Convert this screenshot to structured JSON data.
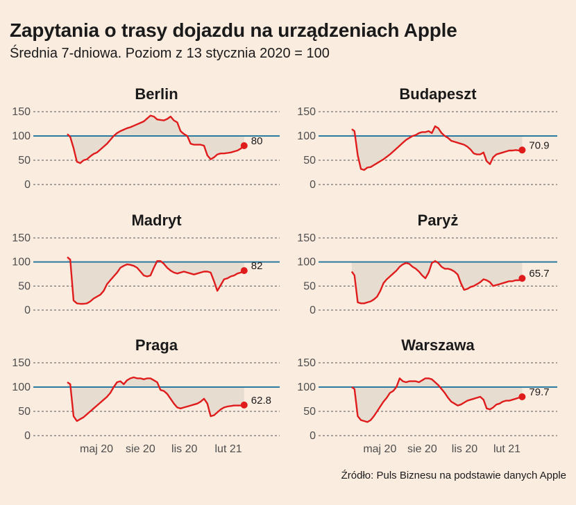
{
  "title": "Zapytania o trasy dojazdu na urządzeniach Apple",
  "subtitle": "Średnia 7-dniowa. Poziom z 13 stycznia 2020 = 100",
  "source": "Źródło: Puls Biznesu na podstawie danych Apple",
  "colors": {
    "background": "#fbece0",
    "line": "#e01b1b",
    "baseline": "#2a7aa0",
    "fill": "#e6dcd0",
    "grid": "#555555"
  },
  "chart_data": [
    {
      "type": "line",
      "title": "Berlin",
      "end_label": "80",
      "x_ticks": [
        "maj 20",
        "sie 20",
        "lis 20",
        "lut 21"
      ],
      "y_ticks": [
        0,
        50,
        100,
        150
      ],
      "ylim": [
        0,
        150
      ],
      "baseline": 100,
      "series": [
        {
          "x": [
            "2020-03-01",
            "2020-03-07",
            "2020-03-14",
            "2020-03-21",
            "2020-03-28",
            "2020-04-04",
            "2020-04-11",
            "2020-04-18",
            "2020-04-25",
            "2020-05-02",
            "2020-05-09",
            "2020-05-16",
            "2020-05-23",
            "2020-05-30",
            "2020-06-06",
            "2020-06-13",
            "2020-06-20",
            "2020-06-27",
            "2020-07-04",
            "2020-07-11",
            "2020-07-18",
            "2020-07-25",
            "2020-08-01",
            "2020-08-08",
            "2020-08-15",
            "2020-08-22",
            "2020-08-29",
            "2020-09-05",
            "2020-09-12",
            "2020-09-19",
            "2020-09-26",
            "2020-10-03",
            "2020-10-10",
            "2020-10-17",
            "2020-10-24",
            "2020-10-31",
            "2020-11-07",
            "2020-11-14",
            "2020-11-21",
            "2020-11-28",
            "2020-12-05",
            "2020-12-12",
            "2020-12-19",
            "2020-12-26",
            "2021-01-02",
            "2021-01-09",
            "2021-01-16",
            "2021-01-23",
            "2021-01-30",
            "2021-02-06",
            "2021-02-13",
            "2021-02-20",
            "2021-02-27",
            "2021-03-06"
          ],
          "y": [
            104,
            98,
            75,
            47,
            44,
            50,
            52,
            58,
            63,
            66,
            72,
            78,
            84,
            92,
            100,
            106,
            110,
            113,
            116,
            118,
            121,
            124,
            127,
            130,
            136,
            142,
            140,
            134,
            133,
            132,
            135,
            140,
            132,
            128,
            110,
            104,
            100,
            84,
            82,
            82,
            82,
            80,
            60,
            52,
            56,
            62,
            64,
            64,
            65,
            66,
            68,
            70,
            74,
            80
          ]
        }
      ]
    },
    {
      "type": "line",
      "title": "Budapeszt",
      "end_label": "70.9",
      "x_ticks": [
        "maj 20",
        "sie 20",
        "lis 20",
        "lut 21"
      ],
      "y_ticks": [
        0,
        50,
        100,
        150
      ],
      "ylim": [
        0,
        150
      ],
      "baseline": 100,
      "series": [
        {
          "x": [
            "2020-03-01",
            "2020-03-07",
            "2020-03-14",
            "2020-03-21",
            "2020-03-28",
            "2020-04-04",
            "2020-04-11",
            "2020-04-18",
            "2020-04-25",
            "2020-05-02",
            "2020-05-09",
            "2020-05-16",
            "2020-05-23",
            "2020-05-30",
            "2020-06-06",
            "2020-06-13",
            "2020-06-20",
            "2020-06-27",
            "2020-07-04",
            "2020-07-11",
            "2020-07-18",
            "2020-07-25",
            "2020-08-01",
            "2020-08-08",
            "2020-08-15",
            "2020-08-22",
            "2020-08-29",
            "2020-09-05",
            "2020-09-12",
            "2020-09-19",
            "2020-09-26",
            "2020-10-03",
            "2020-10-10",
            "2020-10-17",
            "2020-10-24",
            "2020-10-31",
            "2020-11-07",
            "2020-11-14",
            "2020-11-21",
            "2020-11-28",
            "2020-12-05",
            "2020-12-12",
            "2020-12-19",
            "2020-12-26",
            "2021-01-02",
            "2021-01-09",
            "2021-01-16",
            "2021-01-23",
            "2021-01-30",
            "2021-02-06",
            "2021-02-13",
            "2021-02-20",
            "2021-02-27",
            "2021-03-06"
          ],
          "y": [
            114,
            110,
            60,
            32,
            30,
            35,
            36,
            40,
            44,
            48,
            52,
            57,
            62,
            68,
            74,
            80,
            86,
            92,
            96,
            100,
            102,
            106,
            108,
            108,
            110,
            106,
            120,
            116,
            106,
            100,
            96,
            90,
            88,
            86,
            84,
            82,
            78,
            72,
            64,
            62,
            62,
            66,
            48,
            42,
            56,
            62,
            64,
            66,
            68,
            70,
            70,
            71,
            70,
            71
          ]
        }
      ]
    },
    {
      "type": "line",
      "title": "Madryt",
      "end_label": "82",
      "x_ticks": [
        "maj 20",
        "sie 20",
        "lis 20",
        "lut 21"
      ],
      "y_ticks": [
        0,
        50,
        100,
        150
      ],
      "ylim": [
        0,
        150
      ],
      "baseline": 100,
      "series": [
        {
          "x": [
            "2020-03-01",
            "2020-03-07",
            "2020-03-14",
            "2020-03-21",
            "2020-03-28",
            "2020-04-04",
            "2020-04-11",
            "2020-04-18",
            "2020-04-25",
            "2020-05-02",
            "2020-05-09",
            "2020-05-16",
            "2020-05-23",
            "2020-05-30",
            "2020-06-06",
            "2020-06-13",
            "2020-06-20",
            "2020-06-27",
            "2020-07-04",
            "2020-07-11",
            "2020-07-18",
            "2020-07-25",
            "2020-08-01",
            "2020-08-08",
            "2020-08-15",
            "2020-08-22",
            "2020-08-29",
            "2020-09-05",
            "2020-09-12",
            "2020-09-19",
            "2020-09-26",
            "2020-10-03",
            "2020-10-10",
            "2020-10-17",
            "2020-10-24",
            "2020-10-31",
            "2020-11-07",
            "2020-11-14",
            "2020-11-21",
            "2020-11-28",
            "2020-12-05",
            "2020-12-12",
            "2020-12-19",
            "2020-12-26",
            "2021-01-02",
            "2021-01-09",
            "2021-01-16",
            "2021-01-23",
            "2021-01-30",
            "2021-02-06",
            "2021-02-13",
            "2021-02-20",
            "2021-02-27",
            "2021-03-06"
          ],
          "y": [
            110,
            105,
            20,
            14,
            13,
            13,
            14,
            18,
            24,
            28,
            32,
            40,
            54,
            62,
            70,
            78,
            88,
            92,
            95,
            94,
            92,
            88,
            80,
            72,
            70,
            72,
            88,
            102,
            102,
            96,
            88,
            82,
            78,
            76,
            78,
            80,
            78,
            76,
            74,
            76,
            78,
            80,
            80,
            78,
            60,
            40,
            52,
            64,
            66,
            70,
            72,
            76,
            78,
            82
          ]
        }
      ]
    },
    {
      "type": "line",
      "title": "Paryż",
      "end_label": "65.7",
      "x_ticks": [
        "maj 20",
        "sie 20",
        "lis 20",
        "lut 21"
      ],
      "y_ticks": [
        0,
        50,
        100,
        150
      ],
      "ylim": [
        0,
        150
      ],
      "baseline": 100,
      "series": [
        {
          "x": [
            "2020-03-01",
            "2020-03-07",
            "2020-03-14",
            "2020-03-21",
            "2020-03-28",
            "2020-04-04",
            "2020-04-11",
            "2020-04-18",
            "2020-04-25",
            "2020-05-02",
            "2020-05-09",
            "2020-05-16",
            "2020-05-23",
            "2020-05-30",
            "2020-06-06",
            "2020-06-13",
            "2020-06-20",
            "2020-06-27",
            "2020-07-04",
            "2020-07-11",
            "2020-07-18",
            "2020-07-25",
            "2020-08-01",
            "2020-08-08",
            "2020-08-15",
            "2020-08-22",
            "2020-08-29",
            "2020-09-05",
            "2020-09-12",
            "2020-09-19",
            "2020-09-26",
            "2020-10-03",
            "2020-10-10",
            "2020-10-17",
            "2020-10-24",
            "2020-10-31",
            "2020-11-07",
            "2020-11-14",
            "2020-11-21",
            "2020-11-28",
            "2020-12-05",
            "2020-12-12",
            "2020-12-19",
            "2020-12-26",
            "2021-01-02",
            "2021-01-09",
            "2021-01-16",
            "2021-01-23",
            "2021-01-30",
            "2021-02-06",
            "2021-02-13",
            "2021-02-20",
            "2021-02-27",
            "2021-03-06"
          ],
          "y": [
            80,
            72,
            16,
            14,
            14,
            16,
            18,
            22,
            28,
            40,
            56,
            64,
            70,
            76,
            82,
            90,
            95,
            98,
            96,
            90,
            86,
            80,
            72,
            66,
            78,
            98,
            102,
            98,
            90,
            86,
            86,
            84,
            80,
            74,
            56,
            42,
            44,
            48,
            50,
            54,
            58,
            64,
            62,
            58,
            50,
            52,
            54,
            56,
            58,
            60,
            60,
            62,
            62,
            66
          ]
        }
      ]
    },
    {
      "type": "line",
      "title": "Praga",
      "end_label": "62.8",
      "x_ticks": [
        "maj 20",
        "sie 20",
        "lis 20",
        "lut 21"
      ],
      "y_ticks": [
        0,
        50,
        100,
        150
      ],
      "ylim": [
        0,
        150
      ],
      "baseline": 100,
      "series": [
        {
          "x": [
            "2020-03-01",
            "2020-03-07",
            "2020-03-14",
            "2020-03-21",
            "2020-03-28",
            "2020-04-04",
            "2020-04-11",
            "2020-04-18",
            "2020-04-25",
            "2020-05-02",
            "2020-05-09",
            "2020-05-16",
            "2020-05-23",
            "2020-05-30",
            "2020-06-06",
            "2020-06-13",
            "2020-06-20",
            "2020-06-27",
            "2020-07-04",
            "2020-07-11",
            "2020-07-18",
            "2020-07-25",
            "2020-08-01",
            "2020-08-08",
            "2020-08-15",
            "2020-08-22",
            "2020-08-29",
            "2020-09-05",
            "2020-09-12",
            "2020-09-19",
            "2020-09-26",
            "2020-10-03",
            "2020-10-10",
            "2020-10-17",
            "2020-10-24",
            "2020-10-31",
            "2020-11-07",
            "2020-11-14",
            "2020-11-21",
            "2020-11-28",
            "2020-12-05",
            "2020-12-12",
            "2020-12-19",
            "2020-12-26",
            "2021-01-02",
            "2021-01-09",
            "2021-01-16",
            "2021-01-23",
            "2021-01-30",
            "2021-02-06",
            "2021-02-13",
            "2021-02-20",
            "2021-02-27",
            "2021-03-06"
          ],
          "y": [
            110,
            106,
            40,
            30,
            34,
            38,
            44,
            50,
            56,
            62,
            68,
            74,
            80,
            88,
            100,
            110,
            112,
            106,
            114,
            118,
            120,
            118,
            118,
            116,
            118,
            118,
            114,
            110,
            94,
            92,
            86,
            76,
            66,
            58,
            56,
            58,
            60,
            62,
            64,
            66,
            70,
            76,
            66,
            40,
            42,
            48,
            54,
            58,
            60,
            61,
            62,
            62,
            62,
            63
          ]
        }
      ]
    },
    {
      "type": "line",
      "title": "Warszawa",
      "end_label": "79.7",
      "x_ticks": [
        "maj 20",
        "sie 20",
        "lis 20",
        "lut 21"
      ],
      "y_ticks": [
        0,
        50,
        100,
        150
      ],
      "ylim": [
        0,
        150
      ],
      "baseline": 100,
      "series": [
        {
          "x": [
            "2020-03-01",
            "2020-03-07",
            "2020-03-14",
            "2020-03-21",
            "2020-03-28",
            "2020-04-04",
            "2020-04-11",
            "2020-04-18",
            "2020-04-25",
            "2020-05-02",
            "2020-05-09",
            "2020-05-16",
            "2020-05-23",
            "2020-05-30",
            "2020-06-06",
            "2020-06-13",
            "2020-06-20",
            "2020-06-27",
            "2020-07-04",
            "2020-07-11",
            "2020-07-18",
            "2020-07-25",
            "2020-08-01",
            "2020-08-08",
            "2020-08-15",
            "2020-08-22",
            "2020-08-29",
            "2020-09-05",
            "2020-09-12",
            "2020-09-19",
            "2020-09-26",
            "2020-10-03",
            "2020-10-10",
            "2020-10-17",
            "2020-10-24",
            "2020-10-31",
            "2020-11-07",
            "2020-11-14",
            "2020-11-21",
            "2020-11-28",
            "2020-12-05",
            "2020-12-12",
            "2020-12-19",
            "2020-12-26",
            "2021-01-02",
            "2021-01-09",
            "2021-01-16",
            "2021-01-23",
            "2021-01-30",
            "2021-02-06",
            "2021-02-13",
            "2021-02-20",
            "2021-02-27",
            "2021-03-06"
          ],
          "y": [
            100,
            96,
            40,
            32,
            30,
            28,
            32,
            40,
            50,
            60,
            70,
            78,
            88,
            92,
            100,
            118,
            112,
            110,
            112,
            112,
            112,
            110,
            114,
            118,
            118,
            116,
            110,
            104,
            96,
            88,
            78,
            70,
            66,
            62,
            64,
            68,
            72,
            74,
            76,
            78,
            80,
            74,
            56,
            54,
            58,
            64,
            66,
            70,
            72,
            72,
            74,
            76,
            78,
            80
          ]
        }
      ]
    }
  ]
}
